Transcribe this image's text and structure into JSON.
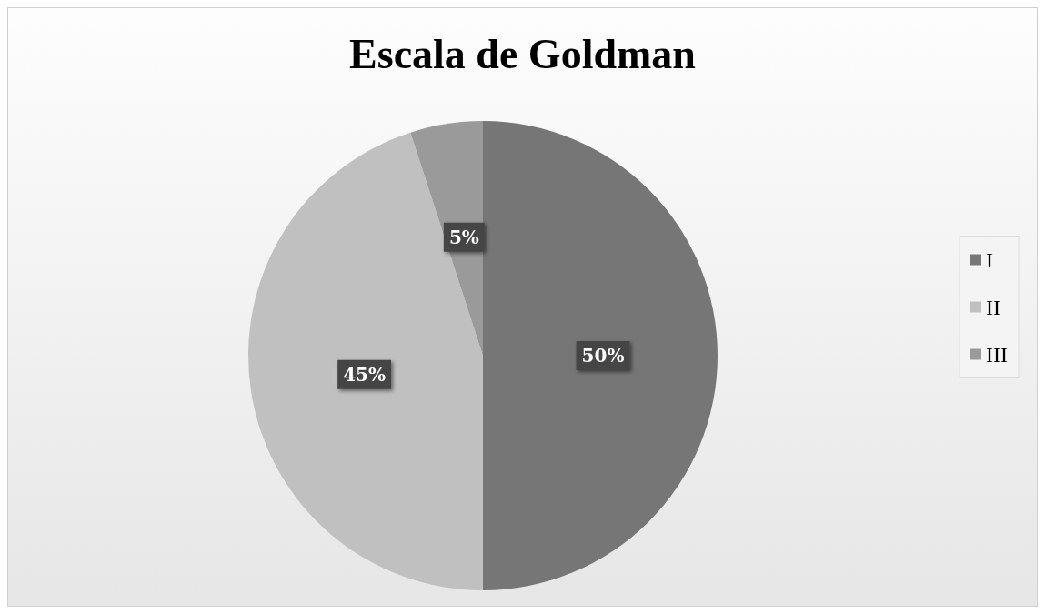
{
  "chart_data": {
    "type": "pie",
    "title": "Escala de Goldman",
    "categories": [
      "I",
      "II",
      "III"
    ],
    "values": [
      50,
      45,
      5
    ],
    "colors": [
      "#767676",
      "#c0c0c0",
      "#9a9a9a"
    ],
    "value_labels": [
      "50%",
      "45%",
      "5%"
    ],
    "legend": "right"
  }
}
